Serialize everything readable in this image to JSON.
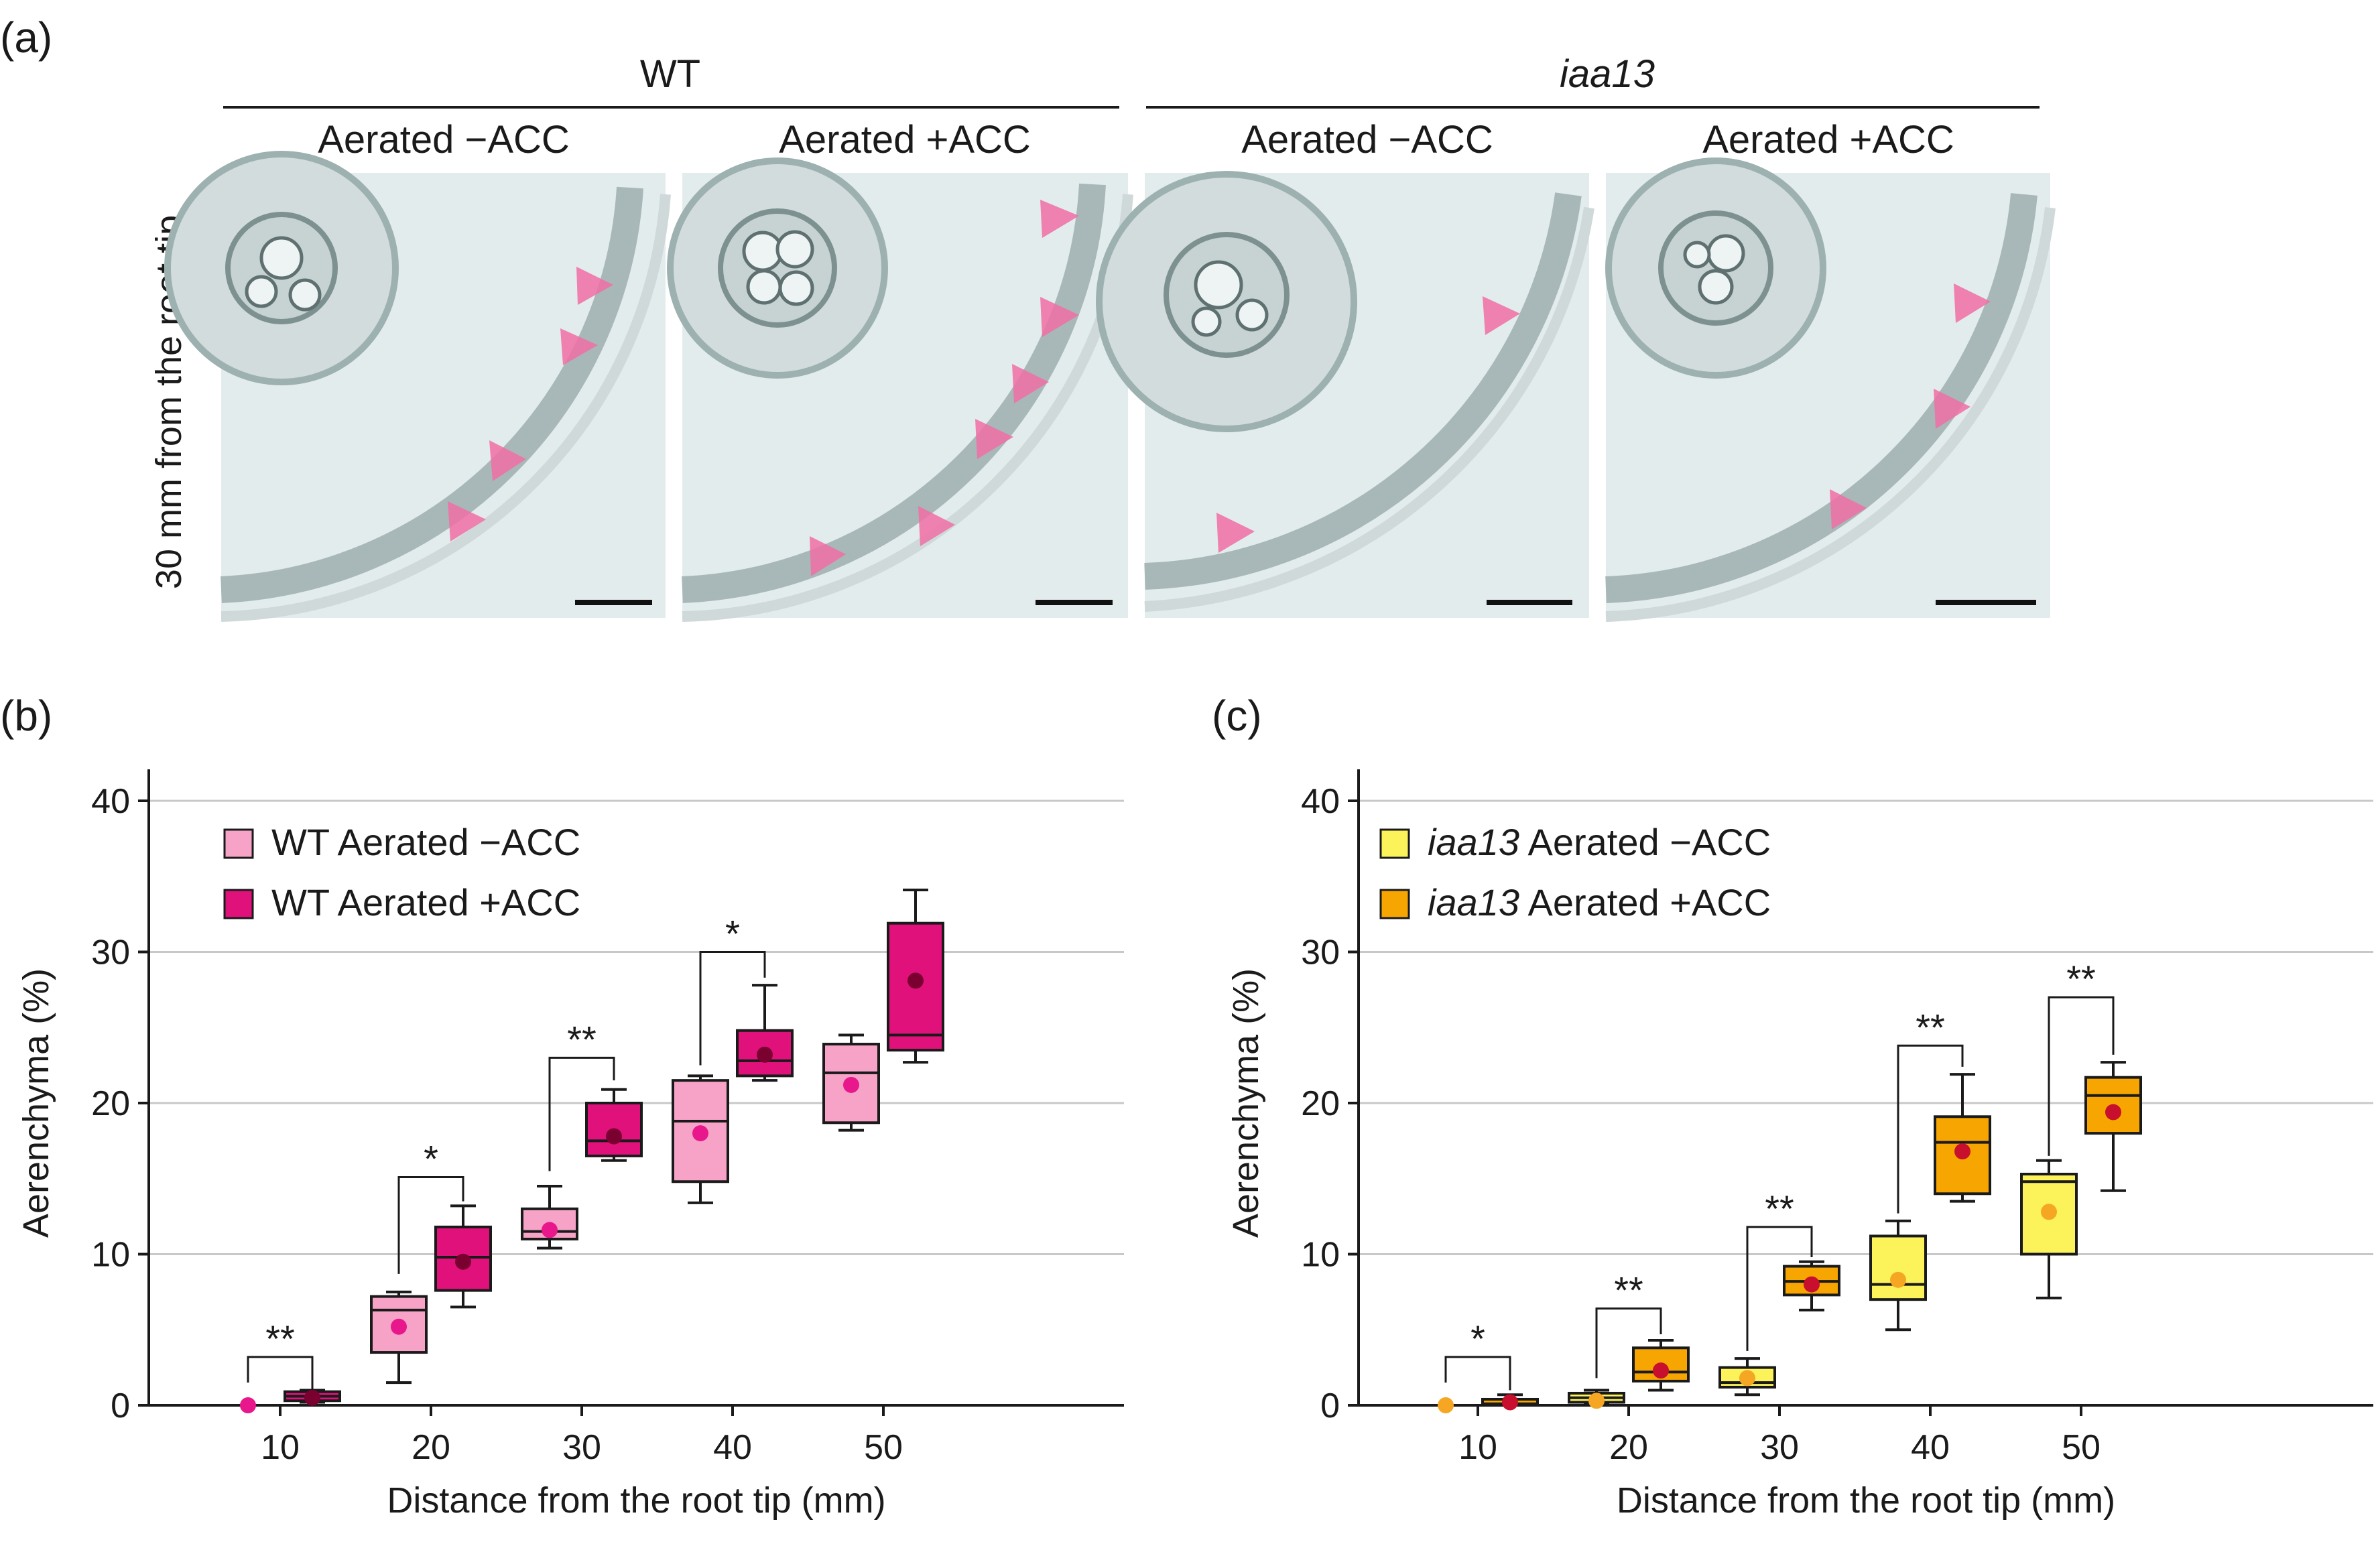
{
  "panels": {
    "a": {
      "label": "(a)",
      "genotypes": [
        "WT",
        "iaa13"
      ],
      "conditions": [
        "Aerated −ACC",
        "Aerated +ACC",
        "Aerated −ACC",
        "Aerated +ACC"
      ],
      "side_label": "30 mm from the root tip",
      "arrowhead_color": "#f06fa5",
      "micrograph_tint": "#e3ecec"
    },
    "b": {
      "label": "(b)"
    },
    "c": {
      "label": "(c)"
    }
  },
  "chart_data": [
    {
      "type": "box",
      "panel": "b",
      "title": "",
      "xlabel": "Distance from the root tip (mm)",
      "ylabel": "Aerenchyma (%)",
      "ylim": [
        0,
        40
      ],
      "yticks": [
        0,
        10,
        20,
        30,
        40
      ],
      "categories": [
        "10",
        "20",
        "30",
        "40",
        "50"
      ],
      "grid": true,
      "legend_position": "top-left",
      "series": [
        {
          "name": "WT Aerated −ACC",
          "color": "#f7a3c7",
          "mean_color": "#e8178c",
          "boxes": [
            {
              "min": 0,
              "q1": 0,
              "median": 0,
              "q3": 0,
              "max": 0,
              "mean": 0
            },
            {
              "min": 1.5,
              "q1": 3.5,
              "median": 6.3,
              "q3": 7.2,
              "max": 7.5,
              "mean": 5.2
            },
            {
              "min": 10.4,
              "q1": 11.0,
              "median": 11.5,
              "q3": 13.0,
              "max": 14.5,
              "mean": 11.6
            },
            {
              "min": 13.4,
              "q1": 14.8,
              "median": 18.8,
              "q3": 21.5,
              "max": 21.8,
              "mean": 18.0
            },
            {
              "min": 18.2,
              "q1": 18.7,
              "median": 22.0,
              "q3": 23.9,
              "max": 24.5,
              "mean": 21.2
            }
          ]
        },
        {
          "name": "WT Aerated +ACC",
          "color": "#e0117a",
          "mean_color": "#7a0030",
          "boxes": [
            {
              "min": 0.2,
              "q1": 0.3,
              "median": 0.6,
              "q3": 0.9,
              "max": 1.0,
              "mean": 0.5
            },
            {
              "min": 6.5,
              "q1": 7.6,
              "median": 9.8,
              "q3": 11.8,
              "max": 13.2,
              "mean": 9.5
            },
            {
              "min": 16.2,
              "q1": 16.5,
              "median": 17.5,
              "q3": 20.0,
              "max": 20.9,
              "mean": 17.8
            },
            {
              "min": 21.5,
              "q1": 21.8,
              "median": 22.8,
              "q3": 24.8,
              "max": 27.8,
              "mean": 23.2
            },
            {
              "min": 22.7,
              "q1": 23.5,
              "median": 24.5,
              "q3": 31.9,
              "max": 34.1,
              "mean": 28.1
            }
          ]
        }
      ],
      "significance": [
        {
          "category": "10",
          "label": "**",
          "bracket_y": 3.2,
          "left_top": 1.5,
          "right_top": 1.0
        },
        {
          "category": "20",
          "label": "*",
          "bracket_y": 15.1,
          "left_top": 8.7,
          "right_top": 13.5
        },
        {
          "category": "30",
          "label": "**",
          "bracket_y": 23.0,
          "left_top": 15.5,
          "right_top": 21.5
        },
        {
          "category": "40",
          "label": "*",
          "bracket_y": 30.0,
          "left_top": 22.5,
          "right_top": 28.3
        },
        {
          "category": "50",
          "label": "",
          "bracket_y": null,
          "left_top": null,
          "right_top": null
        }
      ]
    },
    {
      "type": "box",
      "panel": "c",
      "title": "",
      "xlabel": "Distance from the root tip (mm)",
      "ylabel": "Aerenchyma (%)",
      "ylim": [
        0,
        40
      ],
      "yticks": [
        0,
        10,
        20,
        30,
        40
      ],
      "categories": [
        "10",
        "20",
        "30",
        "40",
        "50"
      ],
      "grid": true,
      "legend_position": "top-left",
      "series": [
        {
          "name_italic": "iaa13",
          "name_rest": " Aerated −ACC",
          "name": "iaa13 Aerated −ACC",
          "color": "#fcf25a",
          "mean_color": "#f5a623",
          "boxes": [
            {
              "min": 0,
              "q1": 0,
              "median": 0,
              "q3": 0,
              "max": 0,
              "mean": 0
            },
            {
              "min": 0.1,
              "q1": 0.2,
              "median": 0.5,
              "q3": 0.8,
              "max": 1.0,
              "mean": 0.3
            },
            {
              "min": 0.7,
              "q1": 1.2,
              "median": 1.5,
              "q3": 2.5,
              "max": 3.1,
              "mean": 1.8
            },
            {
              "min": 5.0,
              "q1": 7.0,
              "median": 8.0,
              "q3": 11.2,
              "max": 12.2,
              "mean": 8.3
            },
            {
              "min": 7.1,
              "q1": 10.0,
              "median": 14.8,
              "q3": 15.3,
              "max": 16.2,
              "mean": 12.8
            }
          ]
        },
        {
          "name_italic": "iaa13",
          "name_rest": " Aerated +ACC",
          "name": "iaa13 Aerated +ACC",
          "color": "#f7a500",
          "mean_color": "#c8102e",
          "boxes": [
            {
              "min": 0,
              "q1": 0.05,
              "median": 0.1,
              "q3": 0.4,
              "max": 0.7,
              "mean": 0.2
            },
            {
              "min": 1.0,
              "q1": 1.6,
              "median": 2.2,
              "q3": 3.8,
              "max": 4.3,
              "mean": 2.3
            },
            {
              "min": 6.3,
              "q1": 7.3,
              "median": 8.2,
              "q3": 9.2,
              "max": 9.5,
              "mean": 8.0
            },
            {
              "min": 13.5,
              "q1": 14.0,
              "median": 17.4,
              "q3": 19.1,
              "max": 21.9,
              "mean": 16.8
            },
            {
              "min": 14.2,
              "q1": 18.0,
              "median": 20.5,
              "q3": 21.7,
              "max": 22.7,
              "mean": 19.4
            }
          ]
        }
      ],
      "significance": [
        {
          "category": "10",
          "label": "*",
          "bracket_y": 3.2,
          "left_top": 1.5,
          "right_top": 1.0
        },
        {
          "category": "20",
          "label": "**",
          "bracket_y": 6.4,
          "left_top": 1.8,
          "right_top": 4.7
        },
        {
          "category": "30",
          "label": "**",
          "bracket_y": 11.8,
          "left_top": 3.6,
          "right_top": 9.8
        },
        {
          "category": "40",
          "label": "**",
          "bracket_y": 23.8,
          "left_top": 12.7,
          "right_top": 22.4
        },
        {
          "category": "50",
          "label": "**",
          "bracket_y": 27.0,
          "left_top": 16.5,
          "right_top": 23.2
        }
      ]
    }
  ]
}
